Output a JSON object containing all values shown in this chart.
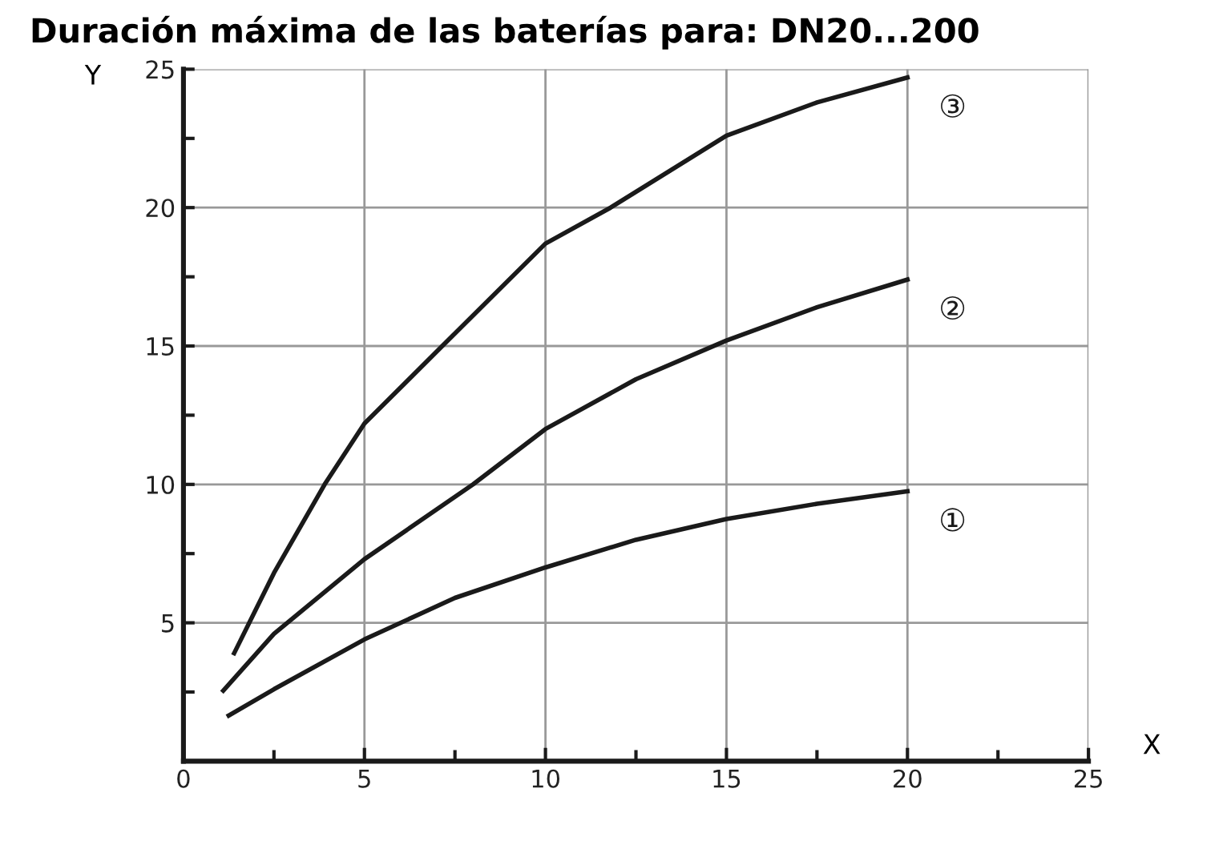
{
  "chart_data": {
    "type": "line",
    "title": "Duración máxima de las baterías para: DN20...200",
    "xlabel": "X",
    "ylabel": "Y",
    "xlim": [
      0,
      25
    ],
    "ylim": [
      0,
      25
    ],
    "xticks": [
      0,
      {
        "value": 2.5,
        "label": null
      },
      5,
      {
        "value": 7.5,
        "label": null
      },
      10,
      {
        "value": 12.5,
        "label": null
      },
      15,
      {
        "value": 17.5,
        "label": null
      },
      20,
      {
        "value": 22.5,
        "label": null
      },
      25
    ],
    "yticks": [
      {
        "value": 2.5,
        "label": null
      },
      5,
      {
        "value": 7.5,
        "label": null
      },
      10,
      {
        "value": 12.5,
        "label": null
      },
      15,
      {
        "value": 17.5,
        "label": null
      },
      20,
      {
        "value": 22.5,
        "label": null
      },
      25
    ],
    "grid": true,
    "marker": "none",
    "line_style": "solid",
    "series": [
      {
        "name": "①",
        "color": "#1a1a1a",
        "x": [
          1.25,
          2.5,
          5,
          7.5,
          10,
          12.5,
          15,
          17.5,
          20
        ],
        "values": [
          1.65,
          2.6,
          4.4,
          5.9,
          7.0,
          8.0,
          8.75,
          9.3,
          9.75
        ]
      },
      {
        "name": "②",
        "color": "#1a1a1a",
        "x": [
          1.1,
          2.5,
          5,
          8,
          10,
          12.5,
          15,
          17.5,
          20
        ],
        "values": [
          2.55,
          4.6,
          7.3,
          10,
          12.0,
          13.8,
          15.2,
          16.4,
          17.4
        ]
      },
      {
        "name": "③",
        "color": "#1a1a1a",
        "x": [
          1.4,
          2.5,
          3.9,
          5,
          7.15,
          10,
          11.8,
          15,
          17.5,
          20
        ],
        "values": [
          3.9,
          6.8,
          10,
          12.2,
          15,
          18.7,
          20,
          22.6,
          23.8,
          24.7
        ]
      }
    ]
  }
}
